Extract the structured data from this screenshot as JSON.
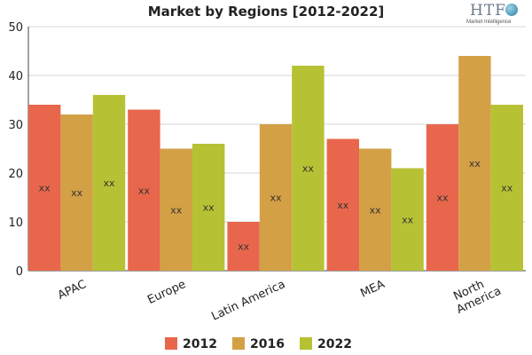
{
  "title": "Market by Regions [2012-2022]",
  "logo": {
    "main": "HTF",
    "sub": "Market Intelligence"
  },
  "chart_data": {
    "type": "bar",
    "title": "Market by Regions [2012-2022]",
    "xlabel": "",
    "ylabel": "",
    "categories": [
      "APAC",
      "Europe",
      "Latin America",
      "MEA",
      "North America"
    ],
    "category_lines": [
      [
        "APAC"
      ],
      [
        "Europe"
      ],
      [
        "Latin America"
      ],
      [
        "MEA"
      ],
      [
        "North",
        "America"
      ]
    ],
    "series": [
      {
        "name": "2012",
        "color": "#e8674c",
        "values": [
          34,
          33,
          10,
          27,
          30
        ]
      },
      {
        "name": "2016",
        "color": "#d4a046",
        "values": [
          32,
          25,
          30,
          25,
          44
        ]
      },
      {
        "name": "2022",
        "color": "#b6c234",
        "values": [
          36,
          26,
          42,
          21,
          34
        ]
      }
    ],
    "data_label": "xx",
    "ylim": [
      0,
      50
    ],
    "yticks": [
      0,
      10,
      20,
      30,
      40,
      50
    ],
    "grid": true,
    "legend_position": "bottom"
  }
}
